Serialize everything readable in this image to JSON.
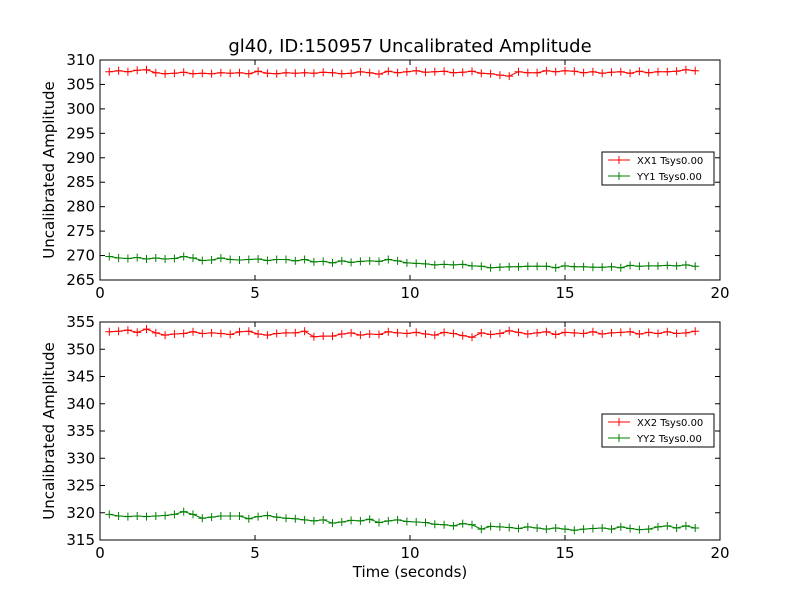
{
  "figure": {
    "title": "gl40, ID:150957 Uncalibrated Amplitude",
    "background": "#ffffff"
  },
  "chart_data": [
    {
      "type": "line",
      "title": "gl40, ID:150957 Uncalibrated Amplitude",
      "xlabel": "",
      "ylabel": "Uncalibrated Amplitude",
      "xlim": [
        0,
        20
      ],
      "ylim": [
        265,
        310
      ],
      "xticks": [
        0,
        5,
        10,
        15,
        20
      ],
      "xtick_labels": [
        "0",
        "5",
        "10",
        "15",
        "20"
      ],
      "yticks": [
        265,
        270,
        275,
        280,
        285,
        290,
        295,
        300,
        305,
        310
      ],
      "ytick_labels": [
        "265",
        "270",
        "275",
        "280",
        "285",
        "290",
        "295",
        "300",
        "305",
        "310"
      ],
      "grid": false,
      "legend_position": "center-right",
      "x": [
        0.3,
        0.6,
        0.9,
        1.2,
        1.5,
        1.8,
        2.1,
        2.4,
        2.7,
        3.0,
        3.3,
        3.6,
        3.9,
        4.2,
        4.5,
        4.8,
        5.1,
        5.4,
        5.7,
        6.0,
        6.3,
        6.6,
        6.9,
        7.2,
        7.5,
        7.8,
        8.1,
        8.4,
        8.7,
        9.0,
        9.3,
        9.6,
        9.9,
        10.2,
        10.5,
        10.8,
        11.1,
        11.4,
        11.7,
        12.0,
        12.3,
        12.6,
        12.9,
        13.2,
        13.5,
        13.8,
        14.1,
        14.4,
        14.7,
        15.0,
        15.3,
        15.6,
        15.9,
        16.2,
        16.5,
        16.8,
        17.1,
        17.4,
        17.7,
        18.0,
        18.3,
        18.6,
        18.9,
        19.2
      ],
      "series": [
        {
          "name": "XX1 Tsys0.00",
          "color": "#ff0000",
          "values": [
            307.6,
            307.8,
            307.6,
            307.9,
            308.0,
            307.4,
            307.2,
            307.3,
            307.5,
            307.2,
            307.3,
            307.2,
            307.4,
            307.3,
            307.4,
            307.2,
            307.7,
            307.3,
            307.2,
            307.4,
            307.3,
            307.4,
            307.3,
            307.5,
            307.4,
            307.2,
            307.3,
            307.6,
            307.4,
            307.1,
            307.7,
            307.4,
            307.6,
            307.8,
            307.5,
            307.6,
            307.7,
            307.4,
            307.5,
            307.7,
            307.3,
            307.2,
            306.9,
            306.7,
            307.6,
            307.4,
            307.4,
            307.8,
            307.6,
            307.8,
            307.7,
            307.4,
            307.6,
            307.3,
            307.5,
            307.6,
            307.3,
            307.7,
            307.4,
            307.6,
            307.6,
            307.7,
            308.0,
            307.8
          ]
        },
        {
          "name": "YY1 Tsys0.00",
          "color": "#008000",
          "values": [
            269.8,
            269.5,
            269.4,
            269.6,
            269.3,
            269.5,
            269.3,
            269.4,
            269.8,
            269.5,
            269.0,
            269.1,
            269.5,
            269.2,
            269.1,
            269.2,
            269.3,
            269.0,
            269.2,
            269.2,
            268.9,
            269.2,
            268.7,
            268.8,
            268.5,
            268.9,
            268.6,
            268.8,
            268.9,
            268.8,
            269.2,
            268.9,
            268.5,
            268.4,
            268.3,
            268.1,
            268.2,
            268.1,
            268.2,
            267.9,
            267.8,
            267.5,
            267.6,
            267.7,
            267.7,
            267.8,
            267.8,
            267.8,
            267.5,
            267.9,
            267.7,
            267.7,
            267.6,
            267.6,
            267.7,
            267.5,
            268.0,
            267.8,
            267.9,
            267.9,
            268.0,
            267.9,
            268.1,
            267.8
          ]
        }
      ]
    },
    {
      "type": "line",
      "title": "",
      "xlabel": "Time (seconds)",
      "ylabel": "Uncalibrated Amplitude",
      "xlim": [
        0,
        20
      ],
      "ylim": [
        315,
        355
      ],
      "xticks": [
        0,
        5,
        10,
        15,
        20
      ],
      "xtick_labels": [
        "0",
        "5",
        "10",
        "15",
        "20"
      ],
      "yticks": [
        315,
        320,
        325,
        330,
        335,
        340,
        345,
        350,
        355
      ],
      "ytick_labels": [
        "315",
        "320",
        "325",
        "330",
        "335",
        "340",
        "345",
        "350",
        "355"
      ],
      "grid": false,
      "legend_position": "center-right",
      "x": [
        0.3,
        0.6,
        0.9,
        1.2,
        1.5,
        1.8,
        2.1,
        2.4,
        2.7,
        3.0,
        3.3,
        3.6,
        3.9,
        4.2,
        4.5,
        4.8,
        5.1,
        5.4,
        5.7,
        6.0,
        6.3,
        6.6,
        6.9,
        7.2,
        7.5,
        7.8,
        8.1,
        8.4,
        8.7,
        9.0,
        9.3,
        9.6,
        9.9,
        10.2,
        10.5,
        10.8,
        11.1,
        11.4,
        11.7,
        12.0,
        12.3,
        12.6,
        12.9,
        13.2,
        13.5,
        13.8,
        14.1,
        14.4,
        14.7,
        15.0,
        15.3,
        15.6,
        15.9,
        16.2,
        16.5,
        16.8,
        17.1,
        17.4,
        17.7,
        18.0,
        18.3,
        18.6,
        18.9,
        19.2
      ],
      "series": [
        {
          "name": "XX2 Tsys0.00",
          "color": "#ff0000",
          "values": [
            353.2,
            353.3,
            353.5,
            353.1,
            353.7,
            353.0,
            352.6,
            352.8,
            352.9,
            353.2,
            352.9,
            353.0,
            352.9,
            352.7,
            353.2,
            353.3,
            352.8,
            352.6,
            352.9,
            353.0,
            353.0,
            353.3,
            352.3,
            352.4,
            352.4,
            352.8,
            353.0,
            352.6,
            352.8,
            352.7,
            353.2,
            353.0,
            352.9,
            353.1,
            352.8,
            352.6,
            353.1,
            352.9,
            352.5,
            352.2,
            353.0,
            352.7,
            352.9,
            353.4,
            353.1,
            352.8,
            353.0,
            353.2,
            352.7,
            353.1,
            353.0,
            352.9,
            353.2,
            352.8,
            353.0,
            353.1,
            353.2,
            352.8,
            353.1,
            352.9,
            353.2,
            352.9,
            353.0,
            353.3
          ]
        },
        {
          "name": "YY2 Tsys0.00",
          "color": "#008000",
          "values": [
            319.7,
            319.4,
            319.3,
            319.4,
            319.3,
            319.4,
            319.5,
            319.7,
            320.2,
            319.7,
            319.0,
            319.2,
            319.4,
            319.4,
            319.4,
            318.9,
            319.3,
            319.5,
            319.2,
            319.0,
            318.9,
            318.7,
            318.5,
            318.7,
            318.1,
            318.3,
            318.6,
            318.5,
            318.8,
            318.2,
            318.5,
            318.7,
            318.4,
            318.3,
            318.2,
            317.9,
            317.8,
            317.6,
            318.0,
            317.8,
            317.0,
            317.5,
            317.4,
            317.3,
            317.1,
            317.4,
            317.2,
            317.0,
            317.2,
            317.0,
            316.8,
            317.0,
            317.1,
            317.2,
            317.0,
            317.4,
            317.1,
            316.9,
            317.0,
            317.4,
            317.6,
            317.2,
            317.6,
            317.2
          ]
        }
      ]
    }
  ]
}
